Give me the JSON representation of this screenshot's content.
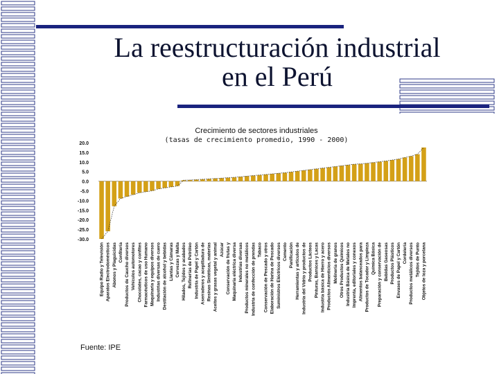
{
  "slide": {
    "title_line1": "La reestructuración industrial",
    "title_line2": "en el Perú",
    "source": "Fuente: IPE"
  },
  "colors": {
    "bar": "#d4a017",
    "trend": "#333333",
    "rule": "#1a237e",
    "deco": "#2e3a87"
  },
  "chart_data": {
    "type": "bar",
    "title": "Crecimiento de sectores industriales",
    "subtitle": "(tasas de crecimiento promedio, 1990 - 2000)",
    "xlabel": "",
    "ylabel": "",
    "ylim": [
      -30,
      20
    ],
    "yticks": [
      "20.0",
      "15.0",
      "10.0",
      "5.0",
      "0.0",
      "-5.0",
      "-10.0",
      "-15.0",
      "-20.0",
      "-25.0",
      "-30.0"
    ],
    "categories": [
      "Equipo Radio y Televisión",
      "Aparatos Electrodomésticos",
      "Abonos y Plaguicidas",
      "Confitería",
      "Productos de Caucho diversos",
      "Vehículos automotores",
      "Chocolates, cacao y confites",
      "Farmacéuticos de uso Humano",
      "Maquinaria y equipos diversos",
      "Industrias diversas de cuero",
      "Destilación de alcohol y bebidas",
      "Llantas y Cámaras",
      "Cervezas y Malta",
      "Hilados, Tejidos y acabados",
      "Refinerías de Petróleo",
      "Industria de Papel y Cartón",
      "Aserraderos y acepilladura de",
      "Resinas Sintéticas, materias",
      "Aceites y grasas vegetal y animal",
      "Azúcar",
      "Conservación de frutas y",
      "Maquinaria eléctrica diversa",
      "Industrias diversas",
      "Productos minerales no metálicos",
      "Industria de confección de prendas",
      "Tabaco",
      "Conservación de Pescado y otros",
      "Elaboración de Harina de Pescado",
      "Suministros Eléctricos diversos",
      "Cemento",
      "Panificación",
      "Herramientas y artículos de",
      "Industria del Vidrio y productos de",
      "Productos Lácteos",
      "Pinturas, Barnices y Lacas",
      "Industria básica de Hierro y acero",
      "Productos Alimenticios diversos",
      "Molinería de granos",
      "Otros Productos Químicos",
      "Industria Básica de Metales no",
      "Imprenta, editoriales y conexos",
      "Alimentos balanceados para",
      "Productos de Tocador y Limpieza",
      "Química Básica",
      "Preparación y conservación de",
      "Bebidas Gaseosas",
      "Productos Plásticos",
      "Envases de Papel y Cartón",
      "Cordelería",
      "Productos metálicos diversos",
      "Tejidos de Punto",
      "Objetos de loza y porcelana"
    ],
    "values": [
      -30.0,
      -26.0,
      -13.0,
      -9.0,
      -8.0,
      -7.0,
      -6.0,
      -5.5,
      -5.0,
      -4.0,
      -3.5,
      -3.0,
      -2.5,
      0.5,
      0.6,
      0.8,
      1.0,
      1.2,
      1.4,
      1.6,
      1.8,
      2.0,
      2.3,
      2.6,
      2.9,
      3.2,
      3.5,
      3.8,
      4.1,
      4.4,
      4.8,
      5.2,
      5.6,
      6.0,
      6.4,
      6.8,
      7.2,
      7.6,
      8.0,
      8.4,
      8.8,
      9.0,
      9.3,
      9.7,
      10.1,
      10.5,
      11.0,
      11.5,
      12.3,
      13.0,
      14.0,
      17.5
    ]
  }
}
